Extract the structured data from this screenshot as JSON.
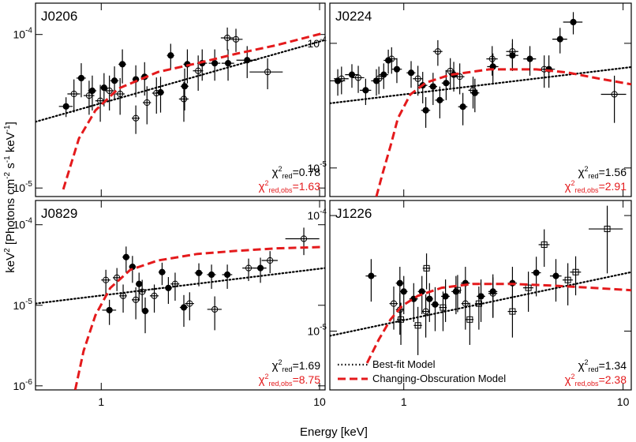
{
  "figure": {
    "xlabel": "Energy [keV]",
    "ylabel": [
      {
        "text": "keV"
      },
      {
        "text": "2",
        "sup": true
      },
      {
        "text": " [Photons cm"
      },
      {
        "text": "-2",
        "sup": true
      },
      {
        "text": " s"
      },
      {
        "text": "-1",
        "sup": true
      },
      {
        "text": " keV"
      },
      {
        "text": "-1",
        "sup": true
      },
      {
        "text": "]"
      }
    ]
  },
  "chart_data": [
    {
      "type": "scatter",
      "title": "J0206",
      "xscale": "log",
      "yscale": "log",
      "xlim": [
        0.5,
        10.6
      ],
      "ylim": [
        8.8e-06,
        0.00016
      ],
      "xticks": [
        1,
        10
      ],
      "xtick_labels": false,
      "yticks": [
        {
          "value": 0.0001,
          "label": "10",
          "exponent": "-4"
        },
        {
          "value": 1e-05,
          "label": "10",
          "exponent": "-5"
        }
      ],
      "series": [
        {
          "marker": "filled-circle",
          "color": "#000000",
          "x": [
            0.69,
            0.81,
            0.91,
            1.03,
            1.15,
            1.25,
            1.44,
            1.58,
            1.87,
            2.08,
            2.41,
            2.48,
            2.9,
            3.31,
            3.81,
            4.66
          ],
          "values": [
            3.4e-05,
            5.2e-05,
            4.3e-05,
            4.5e-05,
            5e-05,
            6.4e-05,
            5.1e-05,
            5.3e-05,
            4.2e-05,
            7.3e-05,
            4.6e-05,
            6.4e-05,
            6.5e-05,
            6.5e-05,
            6.5e-05,
            6.8e-05
          ],
          "yerr": [
            5e-06,
            1.3e-05,
            1.1e-05,
            1.1e-05,
            1.2e-05,
            1.6e-05,
            1.2e-05,
            1.3e-05,
            1.1e-05,
            1.4e-05,
            1.4e-05,
            1.6e-05,
            1.5e-05,
            1.5e-05,
            1.5e-05,
            1.6e-05
          ],
          "xerr": [
            0.05,
            0.04,
            0.04,
            0.04,
            0.05,
            0.05,
            0.05,
            0.06,
            0.07,
            0.08,
            0.1,
            0.1,
            0.15,
            0.2,
            0.25,
            0.5
          ]
        },
        {
          "marker": "open-circle",
          "color": "#000000",
          "x": [
            0.75,
            0.88,
            0.99,
            1.09,
            1.22,
            1.44,
            1.62,
            1.79,
            2.39,
            2.78,
            3.78,
            4.14,
            5.78
          ],
          "values": [
            4.1e-05,
            4e-05,
            3.7e-05,
            4.3e-05,
            4.1e-05,
            2.85e-05,
            3.6e-05,
            4.15e-05,
            3.8e-05,
            5.8e-05,
            9.5e-05,
            9.3e-05,
            5.7e-05
          ],
          "yerr": [
            1e-05,
            1e-05,
            1e-05,
            1.1e-05,
            1.1e-05,
            6e-06,
            1e-05,
            1.1e-05,
            1.1e-05,
            1.5e-05,
            1.6e-05,
            1.6e-05,
            1.3e-05
          ],
          "xerr": [
            0.05,
            0.05,
            0.05,
            0.05,
            0.06,
            0.06,
            0.07,
            0.08,
            0.12,
            0.15,
            0.25,
            0.3,
            1.0
          ]
        },
        {
          "style": "dotted",
          "color": "#000000",
          "x": [
            0.5,
            10.6
          ],
          "values": [
            2.7e-05,
            9.2e-05
          ]
        },
        {
          "style": "dashed",
          "color": "#e41a1c",
          "x": [
            0.67,
            0.79,
            0.94,
            1.2,
            1.82,
            2.76,
            4.17,
            6.32,
            10.4
          ],
          "values": [
            9.8e-06,
            2.1e-05,
            3.2e-05,
            4.45e-05,
            5.7e-05,
            6.5e-05,
            7.5e-05,
            8.5e-05,
            0.000102
          ]
        }
      ],
      "annotations": [
        {
          "symbol": "χ",
          "sup": "2",
          "sub": "red",
          "text": "=0.78",
          "color": "#000000"
        },
        {
          "symbol": "χ",
          "sup": "2",
          "sub": "red,obs",
          "text": "=1.63",
          "color": "#e41a1c"
        }
      ]
    },
    {
      "type": "scatter",
      "title": "J0224",
      "xscale": "log",
      "yscale": "log",
      "xlim": [
        0.46,
        10.9
      ],
      "ylim": [
        5.9e-06,
        0.00021
      ],
      "xticks": [
        1,
        10
      ],
      "xtick_labels": false,
      "yticks": [
        {
          "value": 0.0001,
          "label": "10",
          "exponent": "-4"
        },
        {
          "value": 1e-05,
          "label": "10",
          "exponent": "-5"
        }
      ],
      "series": [
        {
          "marker": "filled-circle",
          "color": "#000000",
          "x": [
            0.5,
            0.58,
            0.67,
            0.75,
            0.81,
            0.85,
            0.93,
            1.08,
            1.22,
            1.26,
            1.36,
            1.46,
            1.56,
            1.69,
            1.86,
            2.11,
            2.55,
            3.13,
            3.76,
            4.59,
            5.16,
            5.93
          ],
          "values": [
            5e-05,
            5.6e-05,
            4.2e-05,
            5e-05,
            5.6e-05,
            7.3e-05,
            6.2e-05,
            5.8e-05,
            4.6e-05,
            2.9e-05,
            4.5e-05,
            3.5e-05,
            4.8e-05,
            5.6e-05,
            3.1e-05,
            4e-05,
            6.5e-05,
            8e-05,
            7.5e-05,
            6.2e-05,
            0.000108,
            0.000148
          ],
          "yerr": [
            1.2e-05,
            1.2e-05,
            1e-05,
            1.2e-05,
            1.3e-05,
            1.6e-05,
            1.4e-05,
            1.4e-05,
            1.3e-05,
            8e-06,
            1.3e-05,
            1e-05,
            1.3e-05,
            1.5e-05,
            9e-06,
            1.2e-05,
            1.8e-05,
            2e-05,
            2e-05,
            1.8e-05,
            2.5e-05,
            3e-05
          ],
          "xerr": [
            0.04,
            0.04,
            0.04,
            0.04,
            0.04,
            0.04,
            0.05,
            0.05,
            0.06,
            0.06,
            0.06,
            0.07,
            0.07,
            0.08,
            0.09,
            0.1,
            0.15,
            0.2,
            0.25,
            0.3,
            0.4,
            0.6
          ]
        },
        {
          "marker": "open-circle",
          "color": "#000000",
          "x": [
            0.52,
            0.62,
            0.77,
            0.88,
            1.16,
            1.43,
            1.63,
            1.8,
            2.07,
            2.53,
            3.13,
            4.37,
            9.13
          ],
          "values": [
            5.2e-05,
            5.3e-05,
            5.2e-05,
            7.5e-05,
            5.2e-05,
            8.6e-05,
            6e-05,
            5.4e-05,
            4.2e-05,
            7.5e-05,
            8.6e-05,
            6.2e-05,
            3.9e-05
          ],
          "yerr": [
            1.3e-05,
            1.3e-05,
            1.3e-05,
            1.8e-05,
            1.4e-05,
            2e-05,
            1.6e-05,
            1.5e-05,
            1.2e-05,
            2e-05,
            2.2e-05,
            1.8e-05,
            1.6e-05
          ],
          "xerr": [
            0.04,
            0.04,
            0.04,
            0.05,
            0.06,
            0.07,
            0.08,
            0.09,
            0.1,
            0.15,
            0.2,
            0.3,
            1.2
          ]
        },
        {
          "style": "dotted",
          "color": "#000000",
          "x": [
            0.46,
            10.9
          ],
          "values": [
            3.3e-05,
            6.45e-05
          ]
        },
        {
          "style": "dashed",
          "color": "#e41a1c",
          "x": [
            0.75,
            0.8,
            0.87,
            0.94,
            1.07,
            1.26,
            1.62,
            2.45,
            4.02,
            5.6,
            7.8,
            10.9
          ],
          "values": [
            5.9e-06,
            9e-06,
            1.5e-05,
            2.5e-05,
            3.88e-05,
            4.83e-05,
            5.58e-05,
            6.18e-05,
            6.18e-05,
            5.83e-05,
            5.2e-05,
            4.69e-05
          ]
        }
      ],
      "annotations": [
        {
          "symbol": "χ",
          "sup": "2",
          "sub": "red",
          "text": "=1.56",
          "color": "#000000"
        },
        {
          "symbol": "χ",
          "sup": "2",
          "sub": "red,obs",
          "text": "=2.91",
          "color": "#e41a1c"
        }
      ]
    },
    {
      "type": "scatter",
      "title": "J0829",
      "xscale": "log",
      "yscale": "log",
      "xlim": [
        0.5,
        10.6
      ],
      "ylim": [
        8.9e-07,
        0.0002
      ],
      "xticks": [
        1,
        10
      ],
      "xtick_labels": true,
      "yticks": [
        {
          "value": 0.0001,
          "label": "10",
          "exponent": "-4"
        },
        {
          "value": 1e-05,
          "label": "10",
          "exponent": "-5"
        },
        {
          "value": 1e-06,
          "label": "10",
          "exponent": "-6"
        }
      ],
      "series": [
        {
          "marker": "filled-circle",
          "color": "#000000",
          "x": [
            1.09,
            1.3,
            1.39,
            1.49,
            1.59,
            1.9,
            2.03,
            2.39,
            2.8,
            3.2,
            3.78,
            5.36
          ],
          "values": [
            8.7e-06,
            3.96e-05,
            3e-05,
            1.84e-05,
            8.5e-06,
            2.58e-05,
            1.64e-05,
            9.4e-06,
            2.52e-05,
            2.4e-05,
            2.4e-05,
            2.9e-05
          ],
          "yerr": [
            3e-06,
            1.4e-05,
            1.1e-05,
            7e-06,
            4e-06,
            8e-06,
            6e-06,
            4e-06,
            8e-06,
            8e-06,
            8e-06,
            1e-05
          ],
          "xerr": [
            0.08,
            0.05,
            0.05,
            0.05,
            0.06,
            0.07,
            0.08,
            0.1,
            0.12,
            0.15,
            0.2,
            0.35
          ]
        },
        {
          "marker": "open-circle",
          "color": "#000000",
          "x": [
            1.05,
            1.18,
            1.26,
            1.44,
            1.54,
            1.75,
            2.18,
            2.54,
            3.31,
            4.73,
            5.93,
            8.47
          ],
          "values": [
            2.06e-05,
            2.2e-05,
            1.31e-05,
            1.17e-05,
            1.47e-05,
            1.31e-05,
            1.84e-05,
            1.05e-05,
            8.9e-06,
            2.9e-05,
            3.6e-05,
            6.7e-05
          ],
          "yerr": [
            7e-06,
            7e-06,
            5e-06,
            5e-06,
            6e-06,
            5e-06,
            7e-06,
            4e-06,
            4e-06,
            9e-06,
            1.1e-05,
            2.5e-05
          ],
          "xerr": [
            0.05,
            0.05,
            0.05,
            0.06,
            0.06,
            0.08,
            0.1,
            0.12,
            0.25,
            0.3,
            0.5,
            1.5
          ]
        },
        {
          "style": "dotted",
          "color": "#000000",
          "x": [
            0.5,
            10.6
          ],
          "values": [
            1.05e-05,
            2.9e-05
          ]
        },
        {
          "style": "dashed",
          "color": "#e41a1c",
          "x": [
            0.76,
            0.83,
            0.94,
            1.1,
            1.36,
            1.82,
            2.76,
            4.18,
            6.33,
            10.4
          ],
          "values": [
            8.9e-07,
            2.7e-06,
            7.5e-06,
            1.64e-05,
            2.76e-05,
            3.6e-05,
            4.34e-05,
            4.74e-05,
            5.08e-05,
            5.3e-05
          ]
        }
      ],
      "annotations": [
        {
          "symbol": "χ",
          "sup": "2",
          "sub": "red",
          "text": "=1.69",
          "color": "#000000"
        },
        {
          "symbol": "χ",
          "sup": "2",
          "sub": "red,obs",
          "text": "=8.75",
          "color": "#e41a1c"
        }
      ]
    },
    {
      "type": "scatter",
      "title": "J1226",
      "xscale": "log",
      "yscale": "log",
      "xlim": [
        0.46,
        10.9
      ],
      "ylim": [
        3.1e-06,
        0.000135
      ],
      "xticks": [
        1,
        10
      ],
      "xtick_labels": true,
      "yticks": [
        {
          "value": 0.0001,
          "label": "10",
          "exponent": "-4"
        },
        {
          "value": 1e-05,
          "label": "10",
          "exponent": "-5"
        }
      ],
      "legend": "lower left",
      "series": [
        {
          "marker": "filled-circle",
          "color": "#000000",
          "x": [
            0.71,
            0.96,
            1.0,
            1.11,
            1.21,
            1.31,
            1.39,
            1.55,
            1.73,
            1.91,
            2.25,
            2.55,
            3.13,
            4.02,
            4.94
          ],
          "values": [
            3e-05,
            2.6e-05,
            2.2e-05,
            1.9e-05,
            2.2e-05,
            1.9e-05,
            1.7e-05,
            2e-05,
            2.2e-05,
            2.6e-05,
            2e-05,
            2.2e-05,
            2.6e-05,
            3.2e-05,
            3e-05
          ],
          "yerr": [
            1.2e-05,
            1e-05,
            8e-06,
            7e-06,
            8e-06,
            7e-06,
            7e-06,
            8e-06,
            8e-06,
            1e-05,
            8e-06,
            9e-06,
            1e-05,
            1.2e-05,
            1.2e-05
          ],
          "xerr": [
            0.04,
            0.04,
            0.04,
            0.05,
            0.05,
            0.05,
            0.06,
            0.07,
            0.08,
            0.09,
            0.1,
            0.12,
            0.15,
            0.2,
            0.3
          ]
        },
        {
          "marker": "open-circle",
          "color": "#000000",
          "x": [
            0.9,
            0.96,
            1.26,
            1.91,
            2.55
          ],
          "values": [
            1.73e-05,
            1.53e-05,
            1.48e-05,
            1.73e-05,
            2.12e-05
          ],
          "yerr": [
            7e-06,
            6e-06,
            6e-06,
            7e-06,
            8e-06
          ],
          "xerr": [
            0.04,
            0.04,
            0.05,
            0.08,
            0.12
          ]
        },
        {
          "marker": "open-square",
          "color": "#000000",
          "x": [
            0.97,
            1.16,
            1.27,
            1.51,
            1.76,
            2.0,
            2.2,
            3.13,
            3.7,
            4.37,
            5.6,
            6.08,
            8.47
          ],
          "values": [
            1.26e-05,
            1.12e-05,
            3.5e-05,
            1.6e-05,
            2.26e-05,
            1.26e-05,
            1.73e-05,
            1.48e-05,
            2.37e-05,
            5.6e-05,
            2.77e-05,
            3.24e-05,
            7.66e-05
          ],
          "yerr": [
            5e-06,
            5e-06,
            1.2e-05,
            6e-06,
            8e-06,
            5e-06,
            7e-06,
            6e-06,
            9e-06,
            2e-05,
            1.1e-05,
            1.2e-05,
            4.5e-05
          ],
          "xerr": [
            0.04,
            0.05,
            0.05,
            0.06,
            0.07,
            0.08,
            0.09,
            0.15,
            0.2,
            0.25,
            0.3,
            0.35,
            1.5
          ]
        },
        {
          "name": "Best-fit Model",
          "style": "dotted",
          "color": "#000000",
          "x": [
            0.46,
            10.9
          ],
          "values": [
            9.1e-06,
            3.24e-05
          ]
        },
        {
          "name": "Changing-Obscuration Model",
          "style": "dashed",
          "color": "#e41a1c",
          "x": [
            0.68,
            0.77,
            0.87,
            0.98,
            1.16,
            1.49,
            2.07,
            3.13,
            4.75,
            7.18,
            10.9
          ],
          "values": [
            5.3e-06,
            8.5e-06,
            1.26e-05,
            1.65e-05,
            2.02e-05,
            2.37e-05,
            2.56e-05,
            2.56e-05,
            2.48e-05,
            2.37e-05,
            2.26e-05
          ]
        }
      ],
      "annotations": [
        {
          "symbol": "χ",
          "sup": "2",
          "sub": "red",
          "text": "=1.34",
          "color": "#000000"
        },
        {
          "symbol": "χ",
          "sup": "2",
          "sub": "red,obs",
          "text": "=2.38",
          "color": "#e41a1c"
        }
      ]
    }
  ]
}
